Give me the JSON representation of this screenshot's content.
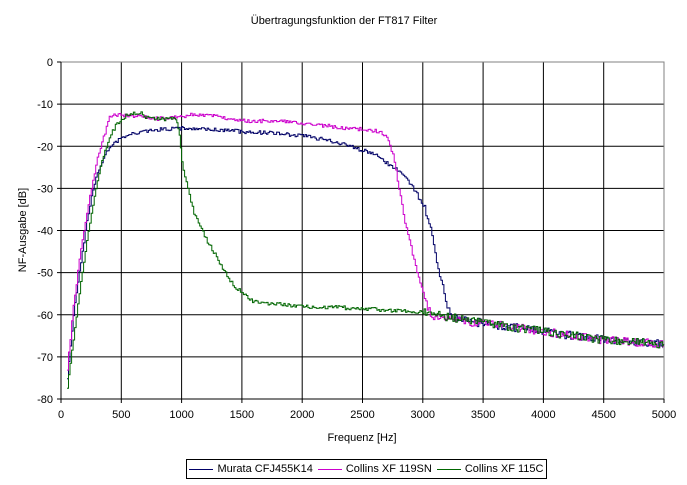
{
  "chart_data": {
    "type": "line",
    "title": "Übertragungsfunktion der FT817 Filter",
    "xlabel": "Frequenz [Hz]",
    "ylabel": "NF-Ausgabe [dB]",
    "xlim": [
      0,
      5000
    ],
    "ylim": [
      -80,
      0
    ],
    "xticks": [
      0,
      500,
      1000,
      1500,
      2000,
      2500,
      3000,
      3500,
      4000,
      4500,
      5000
    ],
    "yticks": [
      0,
      -10,
      -20,
      -30,
      -40,
      -50,
      -60,
      -70,
      -80
    ],
    "xtick_labels": [
      "0",
      "500",
      "1000",
      "1500",
      "2000",
      "2500",
      "3000",
      "3500",
      "4000",
      "4500",
      "5000"
    ],
    "ytick_labels": [
      "0",
      "-10",
      "-20",
      "-30",
      "-40",
      "-50",
      "-60",
      "-70",
      "-80"
    ],
    "grid": true,
    "legend_position": "bottom",
    "series": [
      {
        "name": "Murata CFJ455K14",
        "color": "#000066",
        "x": [
          50,
          100,
          150,
          200,
          250,
          300,
          350,
          400,
          500,
          600,
          700,
          800,
          1000,
          1200,
          1500,
          1800,
          2000,
          2200,
          2400,
          2600,
          2700,
          2800,
          2900,
          3000,
          3050,
          3100,
          3150,
          3200,
          3250,
          3500,
          4000,
          4500,
          5000
        ],
        "y": [
          -75,
          -60,
          -50,
          -40,
          -32,
          -26,
          -23,
          -20,
          -18,
          -17,
          -16.5,
          -16,
          -15.7,
          -16,
          -16.5,
          -17,
          -17.5,
          -18.5,
          -20,
          -22,
          -24,
          -26,
          -29,
          -34,
          -38,
          -45,
          -52,
          -58,
          -61,
          -62,
          -64,
          -66,
          -67
        ]
      },
      {
        "name": "Collins XF 119SN",
        "color": "#cc00cc",
        "x": [
          50,
          100,
          150,
          200,
          250,
          300,
          350,
          400,
          450,
          600,
          800,
          1000,
          1100,
          1300,
          1500,
          1800,
          2000,
          2300,
          2500,
          2650,
          2700,
          2750,
          2800,
          2850,
          2900,
          2950,
          3000,
          3050,
          3100,
          3500,
          4000,
          4500,
          5000
        ],
        "y": [
          -73,
          -58,
          -47,
          -38,
          -30,
          -23,
          -18,
          -13,
          -12.5,
          -12.8,
          -13.5,
          -13,
          -12.5,
          -13,
          -14,
          -14,
          -14.5,
          -15.5,
          -16,
          -16.5,
          -18,
          -22,
          -30,
          -38,
          -44,
          -50,
          -55,
          -59,
          -61,
          -62,
          -64,
          -66,
          -67
        ]
      },
      {
        "name": "Collins XF 115C",
        "color": "#006600",
        "x": [
          50,
          100,
          150,
          200,
          250,
          300,
          350,
          400,
          450,
          550,
          650,
          700,
          800,
          950,
          980,
          1000,
          1050,
          1100,
          1200,
          1300,
          1400,
          1500,
          1600,
          1800,
          2000,
          2500,
          3000,
          3500,
          4000,
          4500,
          5000
        ],
        "y": [
          -77,
          -66,
          -55,
          -45,
          -36,
          -28,
          -22,
          -18,
          -15,
          -12.5,
          -12,
          -13,
          -13.5,
          -13.5,
          -17,
          -24,
          -30,
          -36,
          -42,
          -47,
          -52,
          -55,
          -57,
          -57.5,
          -58,
          -58.5,
          -59.5,
          -62,
          -64,
          -66,
          -67
        ]
      }
    ]
  }
}
